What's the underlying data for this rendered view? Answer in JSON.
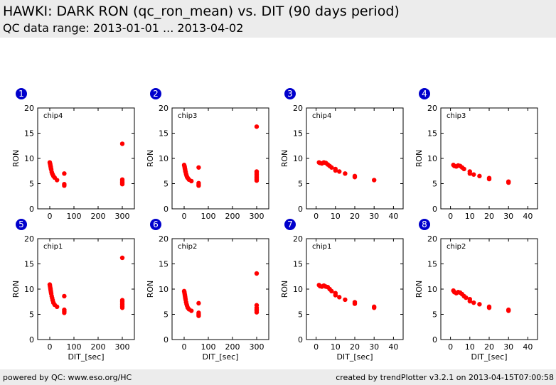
{
  "header": {
    "title": "HAWKI: DARK RON (qc_ron_mean) vs. DIT (90 days period)",
    "subtitle": "QC data range: 2013-01-01 ... 2013-04-02"
  },
  "footer": {
    "left": "powered by QC: www.eso.org/HC",
    "right": "created by trendPlotter v3.2.1 on 2013-04-15T07:00:58"
  },
  "colors": {
    "marker": "#ff0000",
    "badge": "#0000cc",
    "header_bg": "#ececec"
  },
  "chart_data": [
    {
      "type": "scatter",
      "badge": "1",
      "label": "chip4",
      "xlabel": "",
      "ylabel": "RON",
      "xlim": [
        -50,
        350
      ],
      "ylim": [
        0,
        20
      ],
      "xticks": [
        0,
        100,
        200,
        300
      ],
      "yticks": [
        0,
        5,
        10,
        15,
        20
      ],
      "points": [
        [
          0,
          9.2
        ],
        [
          1,
          9.0
        ],
        [
          2,
          8.8
        ],
        [
          3,
          8.5
        ],
        [
          4,
          8.3
        ],
        [
          5,
          8.0
        ],
        [
          6,
          7.8
        ],
        [
          8,
          7.3
        ],
        [
          10,
          7.0
        ],
        [
          12,
          6.8
        ],
        [
          15,
          6.5
        ],
        [
          20,
          6.2
        ],
        [
          30,
          5.7
        ],
        [
          60,
          7.0
        ],
        [
          60,
          4.9
        ],
        [
          60,
          4.6
        ],
        [
          300,
          12.9
        ],
        [
          300,
          5.8
        ],
        [
          300,
          5.5
        ],
        [
          300,
          5.3
        ],
        [
          300,
          5.1
        ],
        [
          300,
          4.9
        ]
      ]
    },
    {
      "type": "scatter",
      "badge": "2",
      "label": "chip3",
      "xlabel": "",
      "ylabel": "RON",
      "xlim": [
        -50,
        350
      ],
      "ylim": [
        0,
        20
      ],
      "xticks": [
        0,
        100,
        200,
        300
      ],
      "yticks": [
        0,
        5,
        10,
        15,
        20
      ],
      "points": [
        [
          0,
          8.7
        ],
        [
          1,
          8.5
        ],
        [
          2,
          8.3
        ],
        [
          3,
          8.0
        ],
        [
          4,
          7.8
        ],
        [
          5,
          7.5
        ],
        [
          6,
          7.3
        ],
        [
          8,
          6.9
        ],
        [
          10,
          6.6
        ],
        [
          12,
          6.3
        ],
        [
          15,
          6.1
        ],
        [
          20,
          5.8
        ],
        [
          30,
          5.5
        ],
        [
          60,
          8.2
        ],
        [
          60,
          5.1
        ],
        [
          60,
          4.8
        ],
        [
          60,
          4.6
        ],
        [
          300,
          16.3
        ],
        [
          300,
          7.4
        ],
        [
          300,
          7.1
        ],
        [
          300,
          6.8
        ],
        [
          300,
          6.5
        ],
        [
          300,
          6.2
        ],
        [
          300,
          5.9
        ],
        [
          300,
          5.6
        ]
      ]
    },
    {
      "type": "scatter",
      "badge": "3",
      "label": "chip4",
      "xlabel": "",
      "ylabel": "RON",
      "xlim": [
        -5,
        45
      ],
      "ylim": [
        0,
        20
      ],
      "xticks": [
        0,
        10,
        20,
        30,
        40
      ],
      "yticks": [
        0,
        5,
        10,
        15,
        20
      ],
      "points": [
        [
          1.5,
          9.2
        ],
        [
          2,
          9.1
        ],
        [
          3,
          9.0
        ],
        [
          4,
          9.2
        ],
        [
          5,
          9.1
        ],
        [
          6,
          8.8
        ],
        [
          7,
          8.5
        ],
        [
          8,
          8.2
        ],
        [
          10,
          7.9
        ],
        [
          10,
          7.6
        ],
        [
          12,
          7.4
        ],
        [
          15,
          7.0
        ],
        [
          20,
          6.5
        ],
        [
          20,
          6.3
        ],
        [
          30,
          5.7
        ]
      ]
    },
    {
      "type": "scatter",
      "badge": "4",
      "label": "chip3",
      "xlabel": "",
      "ylabel": "RON",
      "xlim": [
        -5,
        45
      ],
      "ylim": [
        0,
        20
      ],
      "xticks": [
        0,
        10,
        20,
        30,
        40
      ],
      "yticks": [
        0,
        5,
        10,
        15,
        20
      ],
      "points": [
        [
          1.5,
          8.7
        ],
        [
          2,
          8.5
        ],
        [
          3,
          8.4
        ],
        [
          4,
          8.6
        ],
        [
          5,
          8.5
        ],
        [
          6,
          8.2
        ],
        [
          7,
          7.9
        ],
        [
          10,
          7.4
        ],
        [
          10,
          7.0
        ],
        [
          12,
          6.8
        ],
        [
          15,
          6.5
        ],
        [
          20,
          6.1
        ],
        [
          20,
          5.9
        ],
        [
          30,
          5.4
        ],
        [
          30,
          5.2
        ]
      ]
    },
    {
      "type": "scatter",
      "badge": "5",
      "label": "chip1",
      "xlabel": "DIT_[sec]",
      "ylabel": "RON",
      "xlim": [
        -50,
        350
      ],
      "ylim": [
        0,
        20
      ],
      "xticks": [
        0,
        100,
        200,
        300
      ],
      "yticks": [
        0,
        5,
        10,
        15,
        20
      ],
      "points": [
        [
          0,
          10.9
        ],
        [
          1,
          10.6
        ],
        [
          2,
          10.3
        ],
        [
          3,
          10.0
        ],
        [
          4,
          9.7
        ],
        [
          5,
          9.4
        ],
        [
          6,
          9.1
        ],
        [
          8,
          8.6
        ],
        [
          10,
          8.2
        ],
        [
          12,
          7.8
        ],
        [
          15,
          7.3
        ],
        [
          20,
          6.9
        ],
        [
          30,
          6.5
        ],
        [
          60,
          8.6
        ],
        [
          60,
          5.9
        ],
        [
          60,
          5.6
        ],
        [
          60,
          5.3
        ],
        [
          300,
          16.2
        ],
        [
          300,
          7.8
        ],
        [
          300,
          7.5
        ],
        [
          300,
          7.2
        ],
        [
          300,
          6.9
        ],
        [
          300,
          6.6
        ],
        [
          300,
          6.3
        ]
      ]
    },
    {
      "type": "scatter",
      "badge": "6",
      "label": "chip2",
      "xlabel": "DIT_[sec]",
      "ylabel": "RON",
      "xlim": [
        -50,
        350
      ],
      "ylim": [
        0,
        20
      ],
      "xticks": [
        0,
        100,
        200,
        300
      ],
      "yticks": [
        0,
        5,
        10,
        15,
        20
      ],
      "points": [
        [
          0,
          9.6
        ],
        [
          1,
          9.4
        ],
        [
          2,
          9.1
        ],
        [
          3,
          8.8
        ],
        [
          4,
          8.5
        ],
        [
          5,
          8.2
        ],
        [
          6,
          7.9
        ],
        [
          8,
          7.4
        ],
        [
          10,
          7.0
        ],
        [
          12,
          6.7
        ],
        [
          15,
          6.3
        ],
        [
          20,
          6.0
        ],
        [
          30,
          5.7
        ],
        [
          60,
          7.2
        ],
        [
          60,
          5.3
        ],
        [
          60,
          5.0
        ],
        [
          60,
          4.7
        ],
        [
          300,
          13.1
        ],
        [
          300,
          6.8
        ],
        [
          300,
          6.3
        ],
        [
          300,
          6.0
        ],
        [
          300,
          5.7
        ],
        [
          300,
          5.4
        ]
      ]
    },
    {
      "type": "scatter",
      "badge": "7",
      "label": "chip1",
      "xlabel": "DIT_[sec]",
      "ylabel": "RON",
      "xlim": [
        -5,
        45
      ],
      "ylim": [
        0,
        20
      ],
      "xticks": [
        0,
        10,
        20,
        30,
        40
      ],
      "yticks": [
        0,
        5,
        10,
        15,
        20
      ],
      "points": [
        [
          1.5,
          10.8
        ],
        [
          2,
          10.6
        ],
        [
          3,
          10.5
        ],
        [
          4,
          10.7
        ],
        [
          5,
          10.5
        ],
        [
          6,
          10.4
        ],
        [
          7,
          10.0
        ],
        [
          8,
          9.6
        ],
        [
          10,
          9.2
        ],
        [
          10,
          8.8
        ],
        [
          12,
          8.4
        ],
        [
          15,
          7.9
        ],
        [
          20,
          7.4
        ],
        [
          20,
          7.1
        ],
        [
          30,
          6.5
        ],
        [
          30,
          6.3
        ]
      ]
    },
    {
      "type": "scatter",
      "badge": "8",
      "label": "chip2",
      "xlabel": "DIT_[sec]",
      "ylabel": "RON",
      "xlim": [
        -5,
        45
      ],
      "ylim": [
        0,
        20
      ],
      "xticks": [
        0,
        10,
        20,
        30,
        40
      ],
      "yticks": [
        0,
        5,
        10,
        15,
        20
      ],
      "points": [
        [
          1.5,
          9.7
        ],
        [
          2,
          9.4
        ],
        [
          3,
          9.2
        ],
        [
          4,
          9.4
        ],
        [
          5,
          9.3
        ],
        [
          6,
          9.0
        ],
        [
          7,
          8.6
        ],
        [
          8,
          8.3
        ],
        [
          10,
          8.0
        ],
        [
          10,
          7.6
        ],
        [
          12,
          7.3
        ],
        [
          15,
          7.0
        ],
        [
          20,
          6.5
        ],
        [
          20,
          6.3
        ],
        [
          30,
          5.9
        ],
        [
          30,
          5.7
        ]
      ]
    }
  ]
}
